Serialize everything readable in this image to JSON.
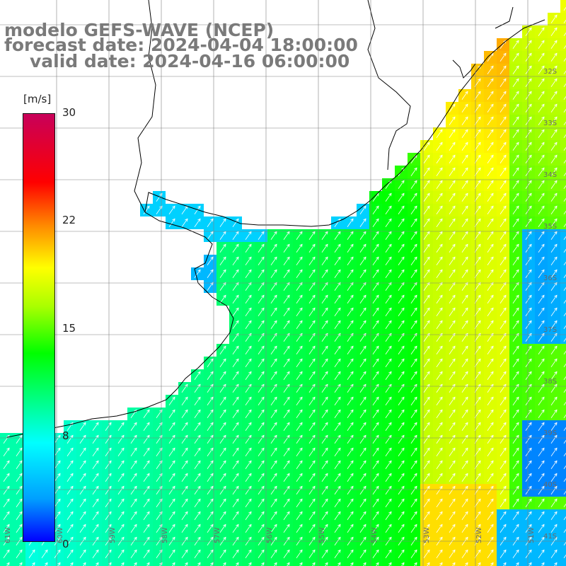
{
  "title": {
    "model": "modelo GEFS-WAVE (NCEP)",
    "forecast": "forecast date: 2024-04-04 18:00:00",
    "valid": "valid date: 2024-04-16 06:00:00"
  },
  "colorbar": {
    "unit": "[m/s]",
    "ticks": [
      "30",
      "22",
      "15",
      "8",
      "0"
    ],
    "tick_values": [
      30,
      22,
      15,
      8,
      0
    ],
    "min": 0,
    "max": 30,
    "colors": [
      "#0000ff",
      "#00a0ff",
      "#00ffff",
      "#00ff00",
      "#aaff00",
      "#ffff00",
      "#ff8800",
      "#ff0000",
      "#c8005a"
    ]
  },
  "map": {
    "lon_labels": [
      "61W",
      "60W",
      "59W",
      "58W",
      "57W",
      "56W",
      "55W",
      "54W",
      "53W",
      "52W",
      "51W",
      "50W"
    ],
    "lat_labels": [
      "32S",
      "33S",
      "34S",
      "35S",
      "36S",
      "37S",
      "38S",
      "39S",
      "40S",
      "41S"
    ],
    "land_color": "#ffffff",
    "coast_color": "#000000",
    "grid_color": "#808080",
    "arrow_color": "#ffffff"
  }
}
